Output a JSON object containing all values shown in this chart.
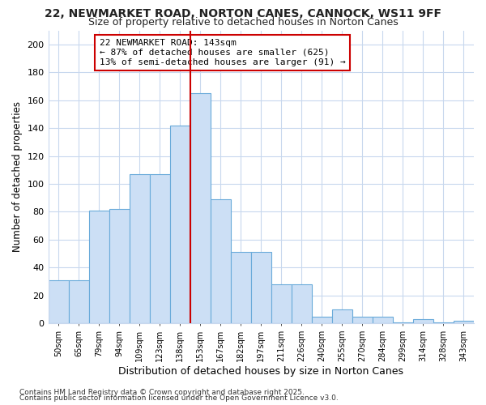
{
  "title": "22, NEWMARKET ROAD, NORTON CANES, CANNOCK, WS11 9FF",
  "subtitle": "Size of property relative to detached houses in Norton Canes",
  "xlabel": "Distribution of detached houses by size in Norton Canes",
  "ylabel": "Number of detached properties",
  "bar_labels": [
    "50sqm",
    "65sqm",
    "79sqm",
    "94sqm",
    "109sqm",
    "123sqm",
    "138sqm",
    "153sqm",
    "167sqm",
    "182sqm",
    "197sqm",
    "211sqm",
    "226sqm",
    "240sqm",
    "255sqm",
    "270sqm",
    "284sqm",
    "299sqm",
    "314sqm",
    "328sqm",
    "343sqm"
  ],
  "bar_values": [
    31,
    31,
    81,
    82,
    107,
    107,
    142,
    165,
    89,
    51,
    51,
    28,
    28,
    5,
    10,
    5,
    5,
    1,
    3,
    1,
    2
  ],
  "bar_color": "#ccdff5",
  "bar_edge_color": "#6aabda",
  "vline_index": 7,
  "vline_color": "#cc0000",
  "annotation_title": "22 NEWMARKET ROAD: 143sqm",
  "annotation_line1": "← 87% of detached houses are smaller (625)",
  "annotation_line2": "13% of semi-detached houses are larger (91) →",
  "annotation_box_color": "#cc0000",
  "ylim": [
    0,
    210
  ],
  "yticks": [
    0,
    20,
    40,
    60,
    80,
    100,
    120,
    140,
    160,
    180,
    200
  ],
  "background_color": "#ffffff",
  "grid_color": "#c8d8ee",
  "footer_line1": "Contains HM Land Registry data © Crown copyright and database right 2025.",
  "footer_line2": "Contains public sector information licensed under the Open Government Licence v3.0."
}
